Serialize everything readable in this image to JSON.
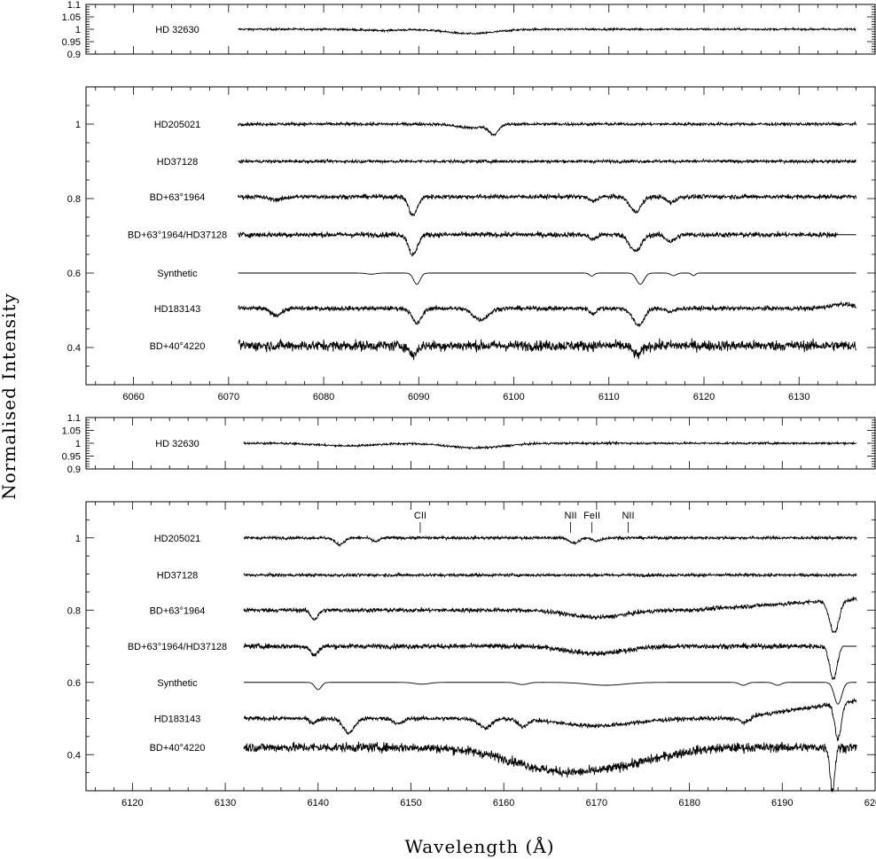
{
  "chart_data": [
    {
      "type": "line",
      "panel": "ref-top",
      "xlim": [
        6055,
        6138
      ],
      "ylim": [
        0.9,
        1.1
      ],
      "yticks": [
        "1.1",
        "1.05",
        "1",
        "0.95",
        "0.9"
      ],
      "ytick_values": [
        1.1,
        1.05,
        1.0,
        0.95,
        0.9
      ],
      "series": [
        {
          "name": "HD 32630",
          "x_range": [
            6071,
            6136
          ],
          "offset": 1.0,
          "noise": 0.004,
          "lines": [
            [
              6095.5,
              0.018,
              2.5
            ],
            [
              6086,
              0.005,
              2
            ]
          ]
        }
      ]
    },
    {
      "type": "line",
      "panel": "main-top",
      "xlim": [
        6055,
        6138
      ],
      "ylim": [
        0.3,
        1.1
      ],
      "xticks": [
        6060,
        6070,
        6080,
        6090,
        6100,
        6110,
        6120,
        6130
      ],
      "yticks": [
        "1",
        "0.8",
        "0.6",
        "0.4"
      ],
      "ytick_values": [
        1.0,
        0.8,
        0.6,
        0.4
      ],
      "series": [
        {
          "name": "HD205021",
          "offset": 1.0,
          "x_range": [
            6071,
            6136
          ],
          "noise": 0.004,
          "lines": [
            [
              6097.9,
              0.025,
              0.5
            ],
            [
              6095.5,
              0.01,
              1.5
            ]
          ]
        },
        {
          "name": "HD37128",
          "offset": 0.9,
          "x_range": [
            6071,
            6136
          ],
          "noise": 0.004,
          "lines": []
        },
        {
          "name": "BD+63°1964",
          "offset": 0.805,
          "x_range": [
            6071,
            6136
          ],
          "noise": 0.006,
          "lines": [
            [
              6089.4,
              0.05,
              0.45
            ],
            [
              6108.3,
              0.012,
              0.4
            ],
            [
              6112.8,
              0.04,
              0.6
            ],
            [
              6116.5,
              0.015,
              0.5
            ],
            [
              6075,
              0.008,
              0.8
            ]
          ]
        },
        {
          "name": "BD+63°1964/HD37128",
          "offset": 0.703,
          "x_range": [
            6071,
            6136
          ],
          "noise": 0.007,
          "flat_from": 6134,
          "lines": [
            [
              6089.4,
              0.055,
              0.45
            ],
            [
              6108.3,
              0.012,
              0.4
            ],
            [
              6112.8,
              0.045,
              0.6
            ],
            [
              6116.5,
              0.018,
              0.5
            ]
          ]
        },
        {
          "name": "Synthetic",
          "offset": 0.6,
          "x_range": [
            6071,
            6136
          ],
          "noise": 0.0,
          "lines": [
            [
              6089.8,
              0.03,
              0.35
            ],
            [
              6108.2,
              0.008,
              0.25
            ],
            [
              6113.3,
              0.03,
              0.4
            ],
            [
              6116.8,
              0.007,
              0.3
            ],
            [
              6118.9,
              0.007,
              0.2
            ],
            [
              6085,
              0.003,
              0.5
            ]
          ]
        },
        {
          "name": "HD183143",
          "offset": 0.505,
          "x_range": [
            6071,
            6136
          ],
          "noise": 0.006,
          "lines": [
            [
              6075,
              0.018,
              0.6
            ],
            [
              6089.8,
              0.04,
              0.5
            ],
            [
              6096.5,
              0.03,
              0.8
            ],
            [
              6108.3,
              0.015,
              0.3
            ],
            [
              6113.1,
              0.045,
              0.6
            ],
            [
              6116.5,
              0.01,
              0.4
            ],
            [
              6134.5,
              -0.012,
              1.2
            ]
          ]
        },
        {
          "name": "BD+40°4220",
          "offset": 0.405,
          "x_range": [
            6071,
            6136
          ],
          "noise": 0.014,
          "lines": [
            [
              6089.4,
              0.025,
              0.4
            ],
            [
              6113.0,
              0.025,
              0.5
            ]
          ]
        }
      ]
    },
    {
      "type": "line",
      "panel": "ref-bottom",
      "xlim": [
        6115,
        6200
      ],
      "ylim": [
        0.9,
        1.1
      ],
      "yticks": [
        "1.1",
        "1.05",
        "1",
        "0.95",
        "0.9"
      ],
      "ytick_values": [
        1.1,
        1.05,
        1.0,
        0.95,
        0.9
      ],
      "series": [
        {
          "name": "HD 32630",
          "x_range": [
            6132,
            6198
          ],
          "offset": 1.0,
          "noise": 0.004,
          "lines": [
            [
              6143,
              0.01,
              3
            ],
            [
              6157,
              0.018,
              3
            ]
          ]
        }
      ]
    },
    {
      "type": "line",
      "panel": "main-bottom",
      "xlim": [
        6115,
        6200
      ],
      "ylim": [
        0.3,
        1.1
      ],
      "xticks": [
        6120,
        6130,
        6140,
        6150,
        6160,
        6170,
        6180,
        6190,
        6200
      ],
      "yticks": [
        "1",
        "0.8",
        "0.6",
        "0.4"
      ],
      "ytick_values": [
        1.0,
        0.8,
        0.6,
        0.4
      ],
      "series": [
        {
          "name": "HD205021",
          "offset": 1.0,
          "x_range": [
            6132,
            6198
          ],
          "noise": 0.004,
          "lines": [
            [
              6142.3,
              0.018,
              0.5
            ],
            [
              6146.2,
              0.01,
              0.4
            ],
            [
              6167.6,
              0.015,
              0.5
            ],
            [
              6170,
              0.008,
              0.5
            ]
          ]
        },
        {
          "name": "HD37128",
          "offset": 0.897,
          "x_range": [
            6132,
            6198
          ],
          "noise": 0.004,
          "lines": []
        },
        {
          "name": "BD+63°1964",
          "offset": 0.8,
          "x_range": [
            6132,
            6198
          ],
          "noise": 0.006,
          "slope": [
            6180,
            6197.5,
            0.03
          ],
          "lines": [
            [
              6139.6,
              0.025,
              0.4
            ],
            [
              6170,
              0.02,
              3
            ],
            [
              6195.6,
              0.09,
              0.5
            ]
          ]
        },
        {
          "name": "BD+63°1964/HD37128",
          "offset": 0.7,
          "x_range": [
            6132,
            6198
          ],
          "noise": 0.007,
          "flat_from": 6196.5,
          "lines": [
            [
              6139.6,
              0.025,
              0.4
            ],
            [
              6170,
              0.02,
              3
            ],
            [
              6195.5,
              0.09,
              0.4
            ]
          ]
        },
        {
          "name": "Synthetic",
          "offset": 0.6,
          "x_range": [
            6132,
            6198
          ],
          "noise": 0.0,
          "lines": [
            [
              6140.0,
              0.02,
              0.35
            ],
            [
              6151.2,
              0.005,
              0.8
            ],
            [
              6162,
              0.006,
              0.6
            ],
            [
              6171,
              0.008,
              2.0
            ],
            [
              6185.8,
              0.008,
              0.4
            ],
            [
              6189.5,
              0.008,
              0.4
            ],
            [
              6196.0,
              0.06,
              0.4
            ]
          ]
        },
        {
          "name": "HD183143",
          "offset": 0.5,
          "x_range": [
            6132,
            6198
          ],
          "noise": 0.006,
          "slope": [
            6185,
            6198,
            0.05
          ],
          "lines": [
            [
              6139.5,
              0.012,
              0.4
            ],
            [
              6143.3,
              0.04,
              0.6
            ],
            [
              6148.7,
              0.015,
              0.5
            ],
            [
              6158,
              0.025,
              0.7
            ],
            [
              6162,
              0.02,
              0.5
            ],
            [
              6170,
              0.02,
              4
            ],
            [
              6186,
              0.015,
              0.5
            ],
            [
              6196.0,
              0.1,
              0.35
            ]
          ]
        },
        {
          "name": "BD+40°4220",
          "offset": 0.42,
          "x_range": [
            6132,
            6198
          ],
          "noise": 0.013,
          "lines": [
            [
              6165,
              0.045,
              5
            ],
            [
              6170,
              0.03,
              5
            ],
            [
              6175,
              0.015,
              4
            ],
            [
              6195.4,
              0.12,
              0.25
            ]
          ]
        }
      ],
      "annotations": [
        {
          "text": "CII",
          "x": 6151.0
        },
        {
          "text": "NII",
          "x": 6167.2
        },
        {
          "text": "FeII",
          "x": 6169.5
        },
        {
          "text": "NII",
          "x": 6173.4
        }
      ]
    }
  ],
  "axes": {
    "ylabel": "Normalised Intensity",
    "xlabel": "Wavelength (Å)"
  },
  "panel_labels": {
    "ref_top": "HD 32630",
    "ref_bottom": "HD 32630",
    "main": [
      "HD205021",
      "HD37128",
      "BD+63°1964",
      "BD+63°1964/HD37128",
      "Synthetic",
      "HD183143",
      "BD+40°4220"
    ]
  }
}
